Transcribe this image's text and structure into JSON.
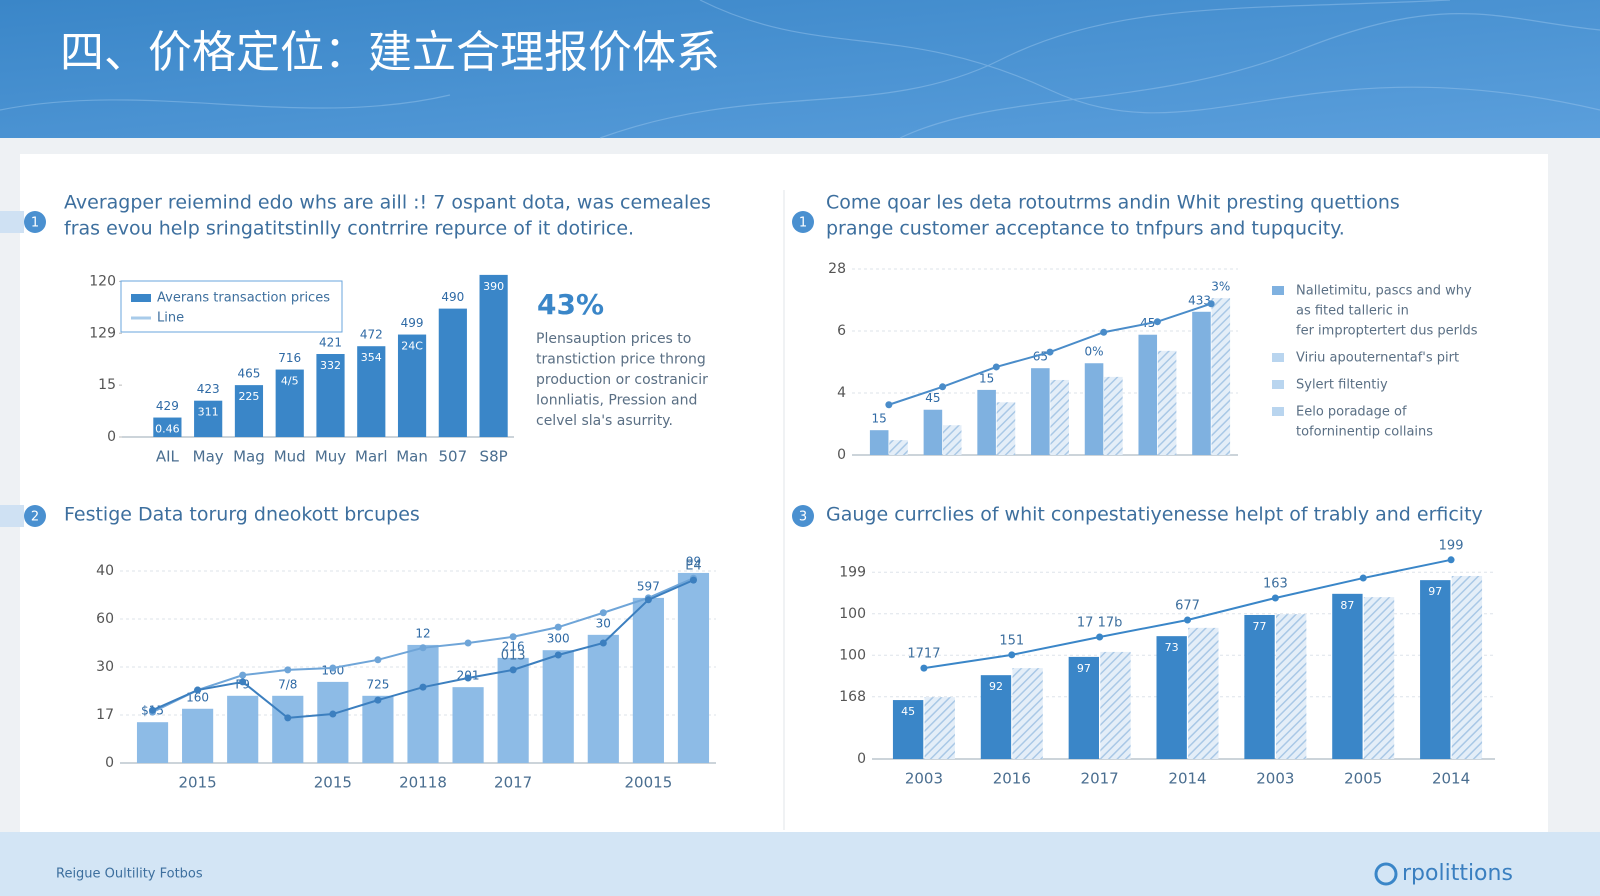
{
  "header": {
    "title": "四、价格定位：建立合理报价体系"
  },
  "footer": {
    "left": "Reigue Oultility Fotbos",
    "logo": "rpolittions"
  },
  "chart_data": [
    {
      "type": "combo",
      "badge": "1",
      "title": "Averagper reiemind edo whs are aill :! 7 ospant dota, was cemeales",
      "subtitle": "fras evou help sringatitstinlly contrrire repurce of it dotirice.",
      "categories": [
        "AIL",
        "May",
        "Mag",
        "Mud",
        "Muy",
        "Marl",
        "Man",
        "507",
        "S8P"
      ],
      "series": [
        {
          "name": "Averans transaction prices",
          "type": "bar",
          "color": "#3a86c8",
          "values": [
            15,
            28,
            40,
            52,
            64,
            70,
            79,
            99,
            125
          ],
          "value_labels": [
            "429",
            "423",
            "465",
            "716",
            "421",
            "472",
            "499",
            "490",
            null
          ],
          "inner_labels": [
            "0.46",
            "311",
            "225",
            "4/5",
            "332",
            "354",
            "24C",
            null,
            "390"
          ]
        }
      ],
      "legend": [
        "Averans transaction prices",
        "Line"
      ],
      "ylim": [
        0,
        128
      ],
      "yticks": [
        0,
        {
          "value": 40,
          "label": "15"
        },
        {
          "value": 80,
          "label": "129"
        },
        120
      ],
      "grid": false,
      "highlight": "43%",
      "callout": [
        "Plensauption prices to",
        "transtiction price throng",
        "production or costranicir",
        "Ionnliatis, Pression and",
        "celvel sla's asurrity."
      ]
    },
    {
      "type": "combo",
      "badge": "1",
      "title": "Come qoar les deta rotoutrms andin Whit presting quettions",
      "subtitle": "prange customer acceptance to tnfpurs and tupqucity.",
      "series": [
        {
          "name": "Nalletimitu, pascs",
          "type": "bar",
          "color": "#7fb1e0",
          "values": [
            4.0,
            7.3,
            10.5,
            14.0,
            14.8,
            19.4,
            23.1
          ],
          "value_labels": [
            "15",
            "45",
            "15",
            "65",
            "0%",
            "45",
            "433."
          ]
        },
        {
          "name": "Viriu apouternentaf's pirt",
          "type": "bar",
          "color": "#b9d5ef",
          "hatch": true,
          "values": [
            2.4,
            4.8,
            8.5,
            12.1,
            12.6,
            16.8,
            25.3
          ],
          "value_labels": [
            null,
            null,
            null,
            null,
            null,
            null,
            "3%"
          ]
        },
        {
          "name": "Sylert filtentiy",
          "type": "line",
          "color": "#4a8cc9",
          "values": [
            8.1,
            11.0,
            14.2,
            16.6,
            19.8,
            21.5,
            24.4
          ]
        }
      ],
      "ylim": [
        0,
        30
      ],
      "yticks": [
        0,
        {
          "value": 10,
          "label": "4"
        },
        {
          "value": 20,
          "label": "6"
        },
        {
          "value": 30,
          "label": "28"
        }
      ],
      "grid": true,
      "notes": [
        [
          "Nalletimitu, pascs and why",
          "as fited talleric in",
          "fer improptertert dus perlds"
        ],
        [
          "Viriu apouternentaf's pirt"
        ],
        [
          "Sylert filtentiy"
        ],
        [
          "Eelo poradage of",
          "toforninentip collains"
        ]
      ]
    },
    {
      "type": "combo",
      "badge": "2",
      "title": "Festige Data torurg dneokott brcupes",
      "categories": [
        null,
        "2015",
        null,
        null,
        "2015",
        null,
        "20118",
        null,
        "2017",
        null,
        null,
        "20015",
        null
      ],
      "series": [
        {
          "name": "Bars",
          "type": "bar",
          "color": "#8dbbe6",
          "values": [
            8.5,
            11.3,
            14.0,
            14.0,
            16.9,
            14.0,
            24.6,
            15.8,
            21.9,
            23.5,
            26.7,
            34.4,
            39.6
          ],
          "value_labels": [
            "$15",
            "160",
            "F9",
            "7/8",
            "160",
            "725",
            "12",
            "201",
            "216",
            "300",
            "30",
            "597",
            "99"
          ]
        },
        {
          "name": "Line A",
          "type": "line",
          "color": "#6fa5d8",
          "values": [
            10.6,
            15.2,
            18.3,
            19.4,
            19.8,
            21.5,
            24.0,
            25.0,
            26.3,
            28.3,
            31.3,
            34.4,
            38.5
          ]
        },
        {
          "name": "Line B",
          "type": "line",
          "color": "#3c7fbf",
          "values": [
            11.0,
            15.2,
            16.9,
            9.4,
            10.2,
            13.1,
            15.8,
            17.7,
            19.4,
            22.5,
            25.0,
            34.0,
            38.1
          ],
          "value_labels": [
            null,
            null,
            null,
            null,
            null,
            null,
            null,
            null,
            "013",
            null,
            null,
            null,
            "E4"
          ]
        }
      ],
      "ylim": [
        0,
        40
      ],
      "yticks": [
        0,
        {
          "value": 10,
          "label": "17"
        },
        {
          "value": 20,
          "label": "30"
        },
        {
          "value": 30,
          "label": "60"
        },
        40
      ],
      "grid": true
    },
    {
      "type": "combo",
      "badge": "3",
      "title": "Gauge currclies of whit conpestatiyenesse helpt of trably and erficity",
      "categories": [
        "2003",
        "2016",
        "2017",
        "2014",
        "2003",
        "2005",
        "2014"
      ],
      "series": [
        {
          "name": "Solid",
          "type": "bar",
          "color": "#3a86c8",
          "values": [
            14.2,
            20.2,
            24.6,
            29.6,
            34.7,
            39.8,
            43.1
          ],
          "inner_labels": [
            "45",
            "92",
            "97",
            "73",
            "77",
            "87",
            "97"
          ]
        },
        {
          "name": "Hatched",
          "type": "bar",
          "color": "#c6dcf0",
          "hatch": true,
          "values": [
            14.9,
            21.9,
            25.8,
            31.6,
            34.9,
            39.0,
            44.1
          ]
        },
        {
          "name": "Trend",
          "type": "line",
          "color": "#3a86c8",
          "values": [
            21.9,
            25.1,
            29.4,
            33.5,
            38.8,
            43.6,
            48.0
          ],
          "value_labels": [
            "1717",
            "151",
            "17 17b",
            "677",
            "163",
            null,
            "199"
          ]
        }
      ],
      "ylim": [
        0,
        50
      ],
      "yticks": [
        0,
        {
          "value": 15,
          "label": "168"
        },
        {
          "value": 25,
          "label": "100"
        },
        {
          "value": 35,
          "label": "100"
        },
        {
          "value": 45,
          "label": "199"
        }
      ],
      "grid": true
    }
  ]
}
